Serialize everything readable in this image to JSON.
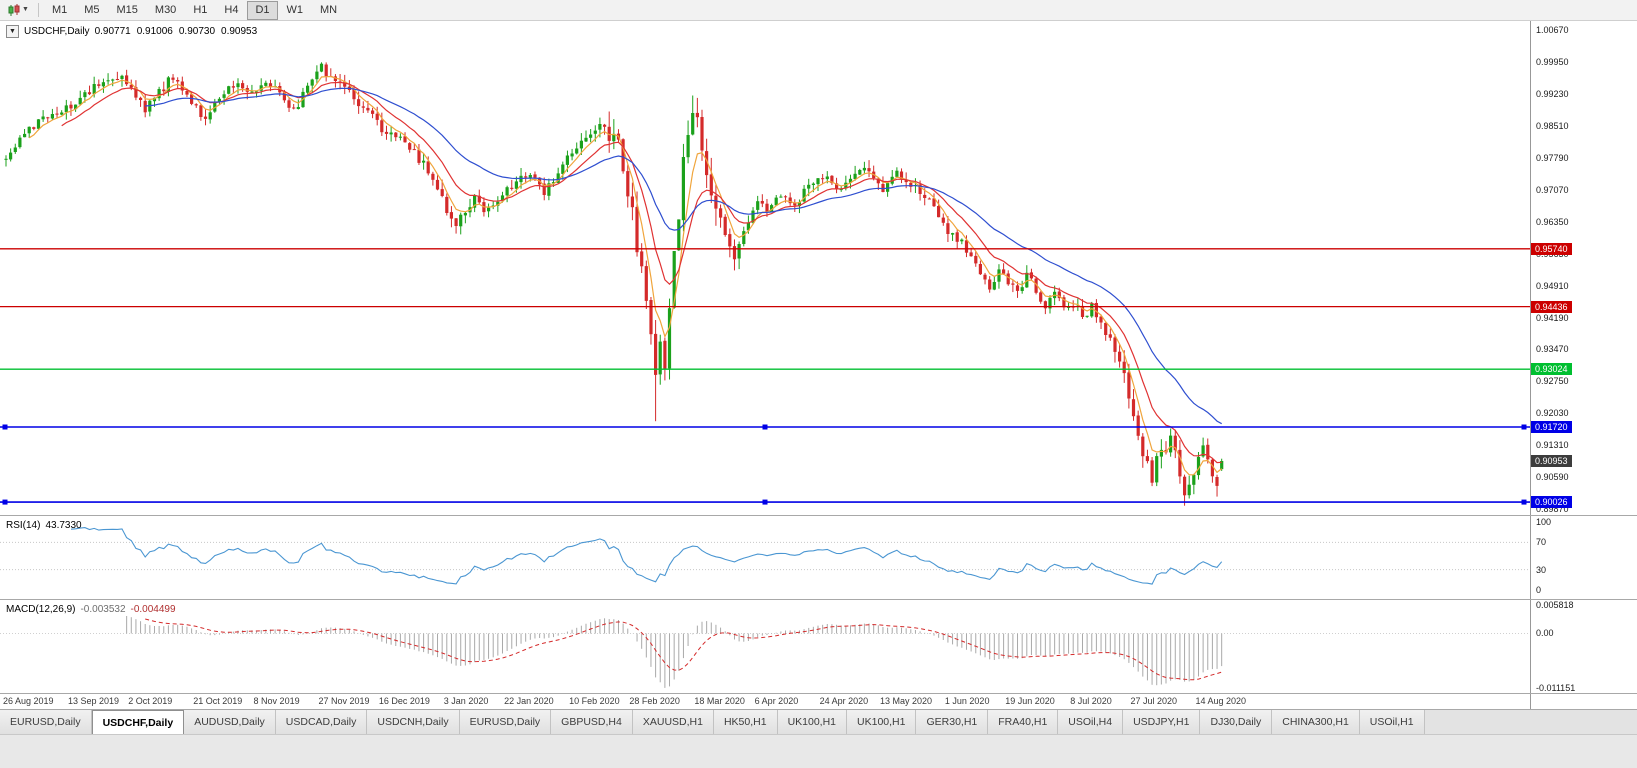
{
  "toolbar": {
    "chart_type_icon": "candlestick-chart",
    "timeframes": [
      "M1",
      "M5",
      "M15",
      "M30",
      "H1",
      "H4",
      "D1",
      "W1",
      "MN"
    ],
    "active_timeframe": "D1"
  },
  "chart": {
    "title_symbol": "USDCHF,Daily",
    "open": "0.90771",
    "high": "0.91006",
    "low": "0.90730",
    "close": "0.90953",
    "collapse_glyph": "▼"
  },
  "rsi_label": {
    "name": "RSI(14)",
    "value": "43.7330"
  },
  "macd_label": {
    "name": "MACD(12,26,9)",
    "value": "-0.003532",
    "signal_value": "-0.004499"
  },
  "chart_data": {
    "type": "candlestick",
    "symbol": "USDCHF",
    "period": "Daily",
    "seed": 42,
    "num_bars": 263,
    "bar_spacing": 4.64,
    "bars_per_label": 13.5,
    "noise": 0.0011,
    "wick": 0.0018,
    "price_range": {
      "min": 0.8987,
      "max": 1.007
    },
    "colors": {
      "up": "#1ba11b",
      "down": "#d42a2a"
    },
    "x_labels": [
      "26 Aug 2019",
      "13 Sep 2019",
      "2 Oct 2019",
      "21 Oct 2019",
      "8 Nov 2019",
      "27 Nov 2019",
      "16 Dec 2019",
      "3 Jan 2020",
      "22 Jan 2020",
      "10 Feb 2020",
      "28 Feb 2020",
      "18 Mar 2020",
      "6 Apr 2020",
      "24 Apr 2020",
      "13 May 2020",
      "1 Jun 2020",
      "19 Jun 2020",
      "8 Jul 2020",
      "27 Jul 2020",
      "14 Aug 2020"
    ],
    "axis_labels": [
      "1.00670",
      "0.99950",
      "0.99230",
      "0.98510",
      "0.97790",
      "0.97070",
      "0.96350",
      "0.95630",
      "0.94910",
      "0.94190",
      "0.93470",
      "0.92750",
      "0.92030",
      "0.91310",
      "0.90590",
      "0.89870"
    ],
    "hlines": [
      {
        "price": 0.9574,
        "color": "#cc0000",
        "width": 1.3
      },
      {
        "price": 0.94436,
        "color": "#cc0000",
        "width": 1.3
      },
      {
        "price": 0.93024,
        "color": "#00bf30",
        "width": 1.3
      },
      {
        "price": 0.9172,
        "color": "#0000e6",
        "width": 1.6,
        "handles": true
      },
      {
        "price": 0.90026,
        "color": "#0000e6",
        "width": 1.6,
        "handles": true
      }
    ],
    "badges": [
      {
        "price": 0.9574,
        "label": "0.95740",
        "color": "#cc0000"
      },
      {
        "price": 0.94436,
        "label": "0.94436",
        "color": "#cc0000"
      },
      {
        "price": 0.93024,
        "label": "0.93024",
        "color": "#00bf30"
      },
      {
        "price": 0.9172,
        "label": "0.91720",
        "color": "#0000e6"
      },
      {
        "price": 0.90026,
        "label": "0.90026",
        "color": "#0000e6"
      },
      {
        "price": 0.90953,
        "label": "0.90953",
        "color": "#3c3c3c"
      }
    ],
    "mas": [
      {
        "period": 5,
        "color": "#f0a53c"
      },
      {
        "period": 12,
        "color": "#e03333"
      },
      {
        "period": 30,
        "color": "#2f4fd0"
      }
    ],
    "anchors": [
      [
        0,
        0.9775
      ],
      [
        2,
        0.98
      ],
      [
        5,
        0.985
      ],
      [
        9,
        0.987
      ],
      [
        14,
        0.99
      ],
      [
        18,
        0.993
      ],
      [
        22,
        0.995
      ],
      [
        25,
        0.9965
      ],
      [
        27,
        0.994
      ],
      [
        30,
        0.9885
      ],
      [
        33,
        0.993
      ],
      [
        36,
        0.996
      ],
      [
        38,
        0.9935
      ],
      [
        40,
        0.9905
      ],
      [
        43,
        0.987
      ],
      [
        46,
        0.991
      ],
      [
        49,
        0.9945
      ],
      [
        52,
        0.992
      ],
      [
        57,
        0.995
      ],
      [
        60,
        0.991
      ],
      [
        62,
        0.989
      ],
      [
        65,
        0.9935
      ],
      [
        68,
        0.9985
      ],
      [
        70,
        0.996
      ],
      [
        73,
        0.9945
      ],
      [
        76,
        0.9895
      ],
      [
        79,
        0.987
      ],
      [
        81,
        0.9845
      ],
      [
        84,
        0.9825
      ],
      [
        87,
        0.9805
      ],
      [
        90,
        0.9765
      ],
      [
        92,
        0.973
      ],
      [
        94,
        0.9685
      ],
      [
        96,
        0.965
      ],
      [
        97,
        0.963
      ],
      [
        99,
        0.9655
      ],
      [
        101,
        0.9685
      ],
      [
        103,
        0.9665
      ],
      [
        106,
        0.969
      ],
      [
        108,
        0.971
      ],
      [
        111,
        0.9735
      ],
      [
        114,
        0.9745
      ],
      [
        116,
        0.9705
      ],
      [
        118,
        0.9725
      ],
      [
        120,
        0.976
      ],
      [
        122,
        0.979
      ],
      [
        125,
        0.9825
      ],
      [
        128,
        0.9845
      ],
      [
        130,
        0.984
      ],
      [
        132,
        0.98
      ],
      [
        133,
        0.9755
      ],
      [
        134,
        0.9705
      ],
      [
        135,
        0.9645
      ],
      [
        136,
        0.959
      ],
      [
        137,
        0.953
      ],
      [
        138,
        0.944
      ],
      [
        139,
        0.938
      ],
      [
        140,
        0.931
      ],
      [
        141,
        0.936
      ],
      [
        142,
        0.932
      ],
      [
        143,
        0.943
      ],
      [
        144,
        0.955
      ],
      [
        145,
        0.966
      ],
      [
        146,
        0.978
      ],
      [
        147,
        0.9855
      ],
      [
        148,
        0.9895
      ],
      [
        149,
        0.9865
      ],
      [
        150,
        0.98
      ],
      [
        151,
        0.9755
      ],
      [
        152,
        0.9705
      ],
      [
        153,
        0.966
      ],
      [
        155,
        0.9605
      ],
      [
        157,
        0.9565
      ],
      [
        159,
        0.962
      ],
      [
        162,
        0.968
      ],
      [
        164,
        0.9655
      ],
      [
        167,
        0.97
      ],
      [
        170,
        0.9675
      ],
      [
        173,
        0.9715
      ],
      [
        176,
        0.974
      ],
      [
        179,
        0.97
      ],
      [
        182,
        0.973
      ],
      [
        185,
        0.9765
      ],
      [
        187,
        0.9735
      ],
      [
        189,
        0.9705
      ],
      [
        192,
        0.974
      ],
      [
        195,
        0.972
      ],
      [
        198,
        0.9695
      ],
      [
        200,
        0.966
      ],
      [
        202,
        0.9625
      ],
      [
        205,
        0.96
      ],
      [
        208,
        0.9555
      ],
      [
        210,
        0.951
      ],
      [
        212,
        0.948
      ],
      [
        214,
        0.9525
      ],
      [
        216,
        0.9495
      ],
      [
        218,
        0.947
      ],
      [
        220,
        0.9515
      ],
      [
        222,
        0.948
      ],
      [
        224,
        0.945
      ],
      [
        226,
        0.9475
      ],
      [
        228,
        0.944
      ],
      [
        230,
        0.945
      ],
      [
        232,
        0.942
      ],
      [
        234,
        0.9445
      ],
      [
        236,
        0.94
      ],
      [
        238,
        0.9365
      ],
      [
        240,
        0.931
      ],
      [
        242,
        0.925
      ],
      [
        243,
        0.9205
      ],
      [
        244,
        0.915
      ],
      [
        245,
        0.9105
      ],
      [
        246,
        0.908
      ],
      [
        247,
        0.906
      ],
      [
        248,
        0.909
      ],
      [
        249,
        0.913
      ],
      [
        250,
        0.911
      ],
      [
        251,
        0.915
      ],
      [
        252,
        0.912
      ],
      [
        253,
        0.907
      ],
      [
        254,
        0.903
      ],
      [
        255,
        0.9055
      ],
      [
        256,
        0.908
      ],
      [
        257,
        0.9105
      ],
      [
        258,
        0.913
      ],
      [
        259,
        0.911
      ],
      [
        260,
        0.907
      ],
      [
        261,
        0.904
      ],
      [
        262,
        0.90953
      ]
    ],
    "volatility_zones": [
      {
        "from": 94,
        "to": 100,
        "mult": 1.3
      },
      {
        "from": 130,
        "to": 153,
        "mult": 2.2
      },
      {
        "from": 154,
        "to": 160,
        "mult": 1.4
      },
      {
        "from": 238,
        "to": 256,
        "mult": 1.5
      }
    ],
    "wick_overrides": [
      {
        "bar": 140,
        "low": 0.9185
      },
      {
        "bar": 148,
        "high": 0.992
      },
      {
        "bar": 254,
        "low": 0.9001
      },
      {
        "bar": 261,
        "low": 0.9015
      }
    ],
    "last_bar": [
      0.90771,
      0.91006,
      0.9073,
      0.90953
    ],
    "rsi": {
      "period": 14,
      "color": "#4a96d2",
      "levels": [
        70,
        30
      ],
      "axis_labels": [
        "100",
        "70",
        "30",
        "0"
      ]
    },
    "macd": {
      "fast": 12,
      "slow": 26,
      "signal": 9,
      "range": [
        -0.011151,
        0.005818
      ],
      "axis_labels": {
        "top": "0.005818",
        "zero": "0.00",
        "bottom": "-0.011151"
      },
      "hist_color": "#a9a9a9",
      "signal_color": "#d42a2a"
    }
  },
  "tabs": {
    "items": [
      "EURUSD,Daily",
      "USDCHF,Daily",
      "AUDUSD,Daily",
      "USDCAD,Daily",
      "USDCNH,Daily",
      "EURUSD,Daily",
      "GBPUSD,H4",
      "XAUUSD,H1",
      "HK50,H1",
      "UK100,H1",
      "UK100,H1",
      "GER30,H1",
      "FRA40,H1",
      "USOil,H4",
      "USDJPY,H1",
      "DJ30,Daily",
      "CHINA300,H1",
      "USOil,H1"
    ],
    "active_index": 1
  }
}
